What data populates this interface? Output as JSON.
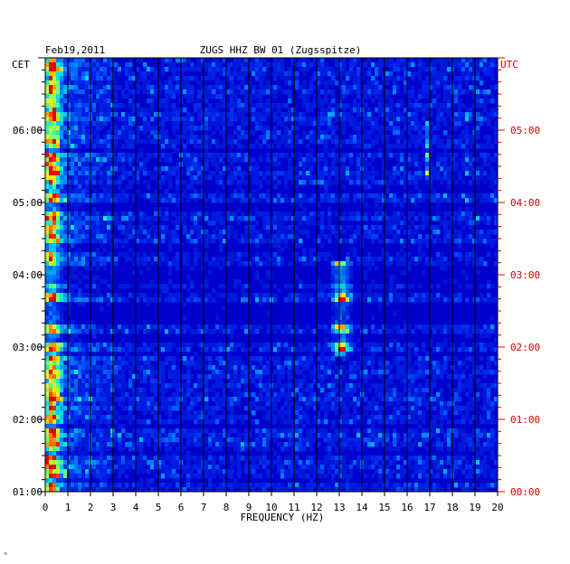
{
  "chart_data": {
    "type": "heatmap",
    "date": "Feb19,2011",
    "title": "ZUGS HHZ BW 01 (Zugsspitze)",
    "xlabel": "FREQUENCY (HZ)",
    "xlim": [
      0,
      20
    ],
    "x_ticks": [
      "0",
      "1",
      "2",
      "3",
      "4",
      "5",
      "6",
      "7",
      "8",
      "9",
      "10",
      "11",
      "12",
      "13",
      "14",
      "15",
      "16",
      "17",
      "18",
      "19",
      "20"
    ],
    "left_axis_label": "CET",
    "right_axis_label": "UTC",
    "cet_ticks": [
      {
        "label": "06:00",
        "hour": 6
      },
      {
        "label": "05:00",
        "hour": 5
      },
      {
        "label": "04:00",
        "hour": 4
      },
      {
        "label": "03:00",
        "hour": 3
      },
      {
        "label": "02:00",
        "hour": 2
      },
      {
        "label": "01:00",
        "hour": 1
      }
    ],
    "utc_ticks": [
      {
        "label": "05:00",
        "hour": 5
      },
      {
        "label": "04:00",
        "hour": 4
      },
      {
        "label": "03:00",
        "hour": 3
      },
      {
        "label": "02:00",
        "hour": 2
      },
      {
        "label": "01:00",
        "hour": 1
      },
      {
        "label": "00:00",
        "hour": 0
      }
    ],
    "time_range_cet_hours": [
      1,
      7
    ],
    "features": [
      {
        "name": "low-frequency band",
        "freq_hz": [
          0,
          1
        ]
      },
      {
        "name": "narrow band",
        "freq_hz": [
          12.9,
          13.3
        ],
        "cet_hours": [
          2.9,
          4.2
        ]
      }
    ],
    "colors": {
      "background": "#0000cc",
      "utc_label": "#dd0000",
      "grid": "#000000"
    }
  },
  "corner_mark": "☼"
}
